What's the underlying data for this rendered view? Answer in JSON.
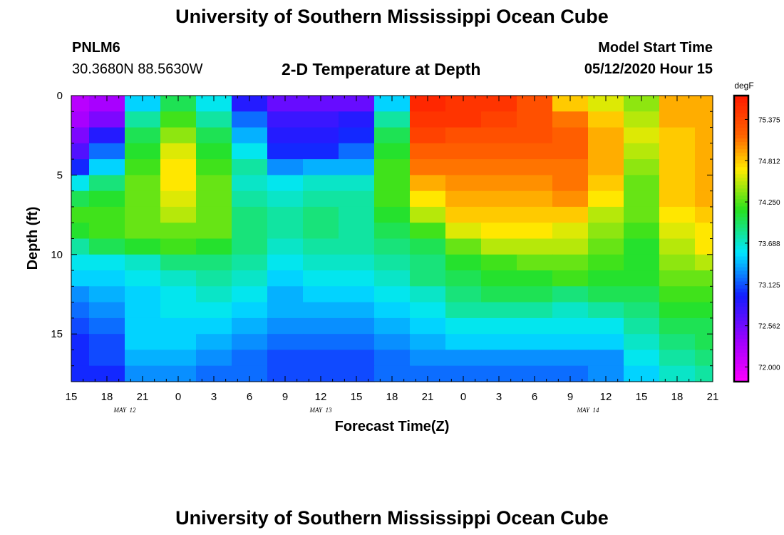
{
  "header": {
    "title": "University of Southern Mississippi Ocean Cube",
    "station": "PNLM6",
    "coords": "30.3680N 88.5630W",
    "subtitle": "2-D Temperature at Depth",
    "model_start_label": "Model Start Time",
    "model_start_value": "05/12/2020 Hour 15"
  },
  "footer": {
    "title": "University of Southern Mississippi Ocean Cube"
  },
  "chart_data": {
    "type": "heatmap",
    "xlabel": "Forecast Time(Z)",
    "ylabel": "Depth (ft)",
    "x_tick_labels": [
      "15",
      "18",
      "21",
      "0",
      "3",
      "6",
      "9",
      "12",
      "15",
      "18",
      "21",
      "0",
      "3",
      "6",
      "9",
      "12",
      "15",
      "18",
      "21"
    ],
    "date_labels": [
      {
        "label": "MAY 12",
        "tick_index": 1.5
      },
      {
        "label": "MAY 13",
        "tick_index": 7
      },
      {
        "label": "MAY 14",
        "tick_index": 14.5
      }
    ],
    "y_ticks": [
      0,
      5,
      10,
      15
    ],
    "ylim": [
      0,
      18
    ],
    "x_hours_from_start": [
      0,
      54
    ],
    "colorbar": {
      "unit": "degF",
      "tick_labels": [
        "75.375",
        "74.812",
        "74.250",
        "73.688",
        "73.125",
        "72.562",
        "72.000"
      ],
      "range": [
        71.8,
        75.7
      ]
    },
    "depth_levels_ft": [
      0.5,
      1.5,
      2.5,
      3.5,
      4.5,
      5.5,
      6.5,
      7.5,
      8.5,
      9.5,
      10.5,
      11.5,
      12.5,
      13.5,
      14.5,
      15.5,
      16.5,
      17.5
    ],
    "time_hours": [
      0,
      3,
      6,
      9,
      12,
      15,
      18,
      21,
      24,
      27,
      30,
      33,
      36,
      39,
      42,
      45,
      48,
      51,
      54
    ],
    "temperature_degF": [
      [
        72.2,
        72.3,
        73.5,
        74.0,
        73.6,
        72.9,
        72.6,
        72.6,
        72.6,
        73.5,
        75.6,
        75.5,
        75.5,
        75.3,
        74.8,
        74.6,
        74.4,
        74.9,
        74.9
      ],
      [
        72.3,
        72.5,
        73.8,
        74.2,
        73.8,
        73.2,
        72.8,
        72.8,
        72.9,
        73.8,
        75.5,
        75.5,
        75.4,
        75.3,
        75.1,
        74.8,
        74.5,
        74.9,
        74.9
      ],
      [
        72.5,
        72.9,
        74.0,
        74.4,
        74.0,
        73.4,
        72.9,
        72.9,
        73.0,
        74.0,
        75.4,
        75.3,
        75.3,
        75.3,
        75.2,
        74.9,
        74.6,
        74.8,
        74.9
      ],
      [
        72.7,
        73.2,
        74.1,
        74.6,
        74.1,
        73.6,
        73.0,
        73.0,
        73.2,
        74.1,
        75.2,
        75.2,
        75.2,
        75.2,
        75.2,
        74.9,
        74.5,
        74.8,
        74.9
      ],
      [
        73.0,
        73.5,
        74.2,
        74.7,
        74.2,
        73.8,
        73.3,
        73.4,
        73.4,
        74.2,
        75.1,
        75.1,
        75.1,
        75.1,
        75.1,
        74.9,
        74.4,
        74.8,
        74.9
      ],
      [
        73.6,
        73.9,
        74.3,
        74.7,
        74.3,
        73.7,
        73.6,
        73.7,
        73.7,
        74.2,
        74.9,
        75.0,
        75.0,
        75.0,
        75.1,
        74.8,
        74.3,
        74.8,
        74.9
      ],
      [
        74.0,
        74.1,
        74.3,
        74.6,
        74.3,
        73.8,
        73.7,
        73.8,
        73.8,
        74.2,
        74.7,
        74.9,
        74.9,
        74.9,
        75.0,
        74.7,
        74.3,
        74.8,
        74.9
      ],
      [
        74.2,
        74.2,
        74.3,
        74.5,
        74.3,
        73.9,
        73.8,
        73.9,
        73.8,
        74.1,
        74.5,
        74.8,
        74.8,
        74.8,
        74.8,
        74.5,
        74.3,
        74.7,
        74.8
      ],
      [
        74.1,
        74.2,
        74.3,
        74.3,
        74.3,
        73.9,
        73.8,
        73.9,
        73.8,
        74.0,
        74.2,
        74.6,
        74.7,
        74.7,
        74.6,
        74.4,
        74.2,
        74.6,
        74.7
      ],
      [
        73.8,
        74.0,
        74.1,
        74.2,
        74.1,
        73.9,
        73.7,
        73.8,
        73.8,
        73.9,
        74.0,
        74.3,
        74.5,
        74.5,
        74.5,
        74.3,
        74.1,
        74.5,
        74.7
      ],
      [
        73.6,
        73.6,
        73.7,
        73.9,
        73.9,
        73.8,
        73.6,
        73.7,
        73.7,
        73.8,
        73.9,
        74.1,
        74.2,
        74.3,
        74.3,
        74.2,
        74.1,
        74.4,
        74.5
      ],
      [
        73.5,
        73.5,
        73.6,
        73.7,
        73.8,
        73.7,
        73.5,
        73.6,
        73.6,
        73.7,
        73.9,
        74.0,
        74.1,
        74.1,
        74.2,
        74.1,
        74.1,
        74.3,
        74.3
      ],
      [
        73.3,
        73.4,
        73.5,
        73.6,
        73.7,
        73.6,
        73.4,
        73.5,
        73.5,
        73.6,
        73.7,
        73.9,
        74.0,
        74.0,
        73.9,
        74.0,
        74.0,
        74.2,
        74.2
      ],
      [
        73.2,
        73.3,
        73.5,
        73.6,
        73.6,
        73.5,
        73.4,
        73.4,
        73.4,
        73.5,
        73.6,
        73.8,
        73.8,
        73.8,
        73.7,
        73.8,
        73.9,
        74.1,
        74.1
      ],
      [
        73.1,
        73.2,
        73.5,
        73.5,
        73.5,
        73.4,
        73.3,
        73.3,
        73.3,
        73.4,
        73.5,
        73.6,
        73.6,
        73.6,
        73.6,
        73.6,
        73.8,
        74.0,
        74.0
      ],
      [
        73.0,
        73.1,
        73.5,
        73.5,
        73.4,
        73.3,
        73.2,
        73.2,
        73.2,
        73.3,
        73.4,
        73.5,
        73.5,
        73.5,
        73.5,
        73.5,
        73.7,
        73.9,
        74.0
      ],
      [
        73.0,
        73.1,
        73.4,
        73.4,
        73.3,
        73.2,
        73.1,
        73.1,
        73.1,
        73.2,
        73.3,
        73.3,
        73.3,
        73.3,
        73.3,
        73.3,
        73.6,
        73.8,
        73.9
      ],
      [
        73.0,
        73.0,
        73.3,
        73.3,
        73.2,
        73.2,
        73.1,
        73.1,
        73.1,
        73.2,
        73.2,
        73.2,
        73.2,
        73.2,
        73.2,
        73.3,
        73.5,
        73.7,
        73.8
      ]
    ]
  }
}
